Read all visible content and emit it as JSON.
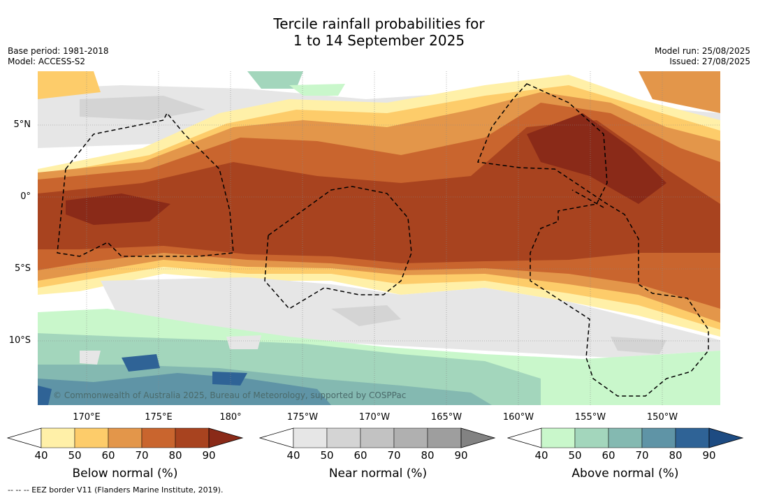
{
  "title": {
    "line1": "Tercile rainfall probabilities for",
    "line2": "1 to 14 September 2025"
  },
  "meta": {
    "base_period": "Base period: 1981-2018",
    "model": "Model: ACCESS-S2",
    "model_run": "Model run: 25/08/2025",
    "issued": "Issued: 27/08/2025"
  },
  "map": {
    "credit": "© Commonwealth of Australia 2025, Bureau of Meteorology, supported by COSPPac",
    "lat_labels": [
      "5°N",
      "0°",
      "5°S",
      "10°S"
    ],
    "lon_labels": [
      "170°E",
      "175°E",
      "180°",
      "175°W",
      "170°W",
      "165°W",
      "160°W",
      "155°W",
      "150°W"
    ]
  },
  "colorbars": [
    {
      "title": "Below normal (%)",
      "ticks": [
        "40",
        "50",
        "60",
        "70",
        "80",
        "90"
      ],
      "colors": [
        "#fff0a8",
        "#fdcc6a",
        "#e3964a",
        "#c9652e",
        "#a8431f",
        "#8a2a18"
      ]
    },
    {
      "title": "Near normal (%)",
      "ticks": [
        "40",
        "50",
        "60",
        "70",
        "80",
        "90"
      ],
      "colors": [
        "#e6e6e6",
        "#d4d4d4",
        "#c2c2c2",
        "#b0b0b0",
        "#9e9e9e",
        "#828282"
      ]
    },
    {
      "title": "Above normal (%)",
      "ticks": [
        "40",
        "50",
        "60",
        "70",
        "80",
        "90"
      ],
      "colors": [
        "#c9f7cb",
        "#a3d6bc",
        "#84b9b1",
        "#5f94a6",
        "#2f6396",
        "#1d4b82"
      ]
    }
  ],
  "footnote": "--  --  -- EEZ border V11 (Flanders Marine Institute, 2019)."
}
